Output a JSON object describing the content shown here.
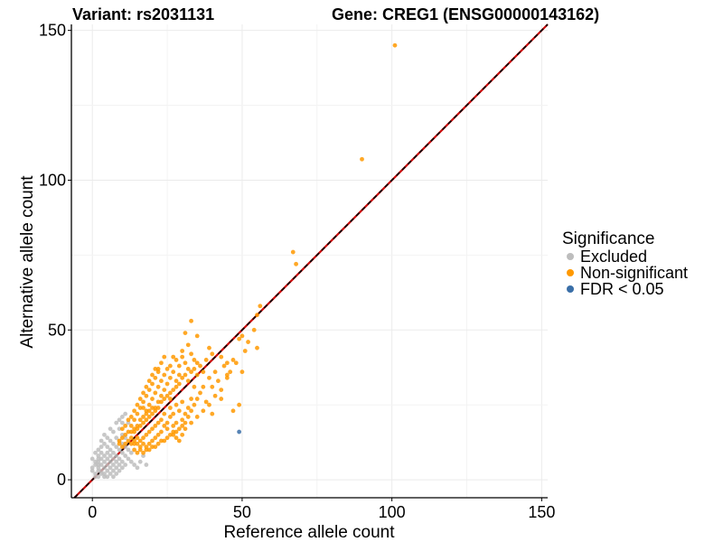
{
  "chart_data": {
    "type": "scatter",
    "title_left": "Variant: rs2031131",
    "title_right": "Gene: CREG1 (ENSG00000143162)",
    "xlabel": "Reference allele count",
    "ylabel": "Alternative allele count",
    "xlim": [
      -7,
      152
    ],
    "ylim": [
      -6,
      152
    ],
    "xticks": [
      0,
      50,
      100,
      150
    ],
    "yticks": [
      0,
      50,
      100,
      150
    ],
    "grid": true,
    "reference_line": {
      "type": "identity",
      "slope": 1,
      "intercept": 0,
      "colors": [
        "#cc0000",
        "#000000"
      ],
      "style": "dashed"
    },
    "legend": {
      "title": "Significance",
      "position": "right",
      "entries": [
        {
          "label": "Excluded",
          "color": "#bdbdbd"
        },
        {
          "label": "Non-significant",
          "color": "#ff9900"
        },
        {
          "label": "FDR < 0.05",
          "color": "#3a6fa8"
        }
      ]
    },
    "series": [
      {
        "name": "Excluded",
        "color": "#bdbdbd",
        "points": [
          [
            0,
            3
          ],
          [
            0,
            4
          ],
          [
            0,
            7
          ],
          [
            1,
            1
          ],
          [
            1,
            2
          ],
          [
            1,
            5
          ],
          [
            1,
            6
          ],
          [
            1,
            9
          ],
          [
            2,
            1
          ],
          [
            2,
            3
          ],
          [
            2,
            4
          ],
          [
            2,
            5
          ],
          [
            2,
            6
          ],
          [
            2,
            7
          ],
          [
            2,
            8
          ],
          [
            2,
            10
          ],
          [
            3,
            2
          ],
          [
            3,
            3
          ],
          [
            3,
            5
          ],
          [
            3,
            7
          ],
          [
            3,
            9
          ],
          [
            3,
            11
          ],
          [
            4,
            1
          ],
          [
            4,
            2
          ],
          [
            4,
            4
          ],
          [
            4,
            6
          ],
          [
            4,
            8
          ],
          [
            4,
            12
          ],
          [
            5,
            1
          ],
          [
            5,
            3
          ],
          [
            5,
            5
          ],
          [
            5,
            7
          ],
          [
            5,
            9
          ],
          [
            5,
            11
          ],
          [
            5,
            14
          ],
          [
            6,
            2
          ],
          [
            6,
            4
          ],
          [
            6,
            6
          ],
          [
            6,
            8
          ],
          [
            6,
            10
          ],
          [
            6,
            13
          ],
          [
            7,
            1
          ],
          [
            7,
            3
          ],
          [
            7,
            5
          ],
          [
            7,
            7
          ],
          [
            7,
            9
          ],
          [
            7,
            12
          ],
          [
            7,
            16
          ],
          [
            8,
            2
          ],
          [
            8,
            4
          ],
          [
            8,
            6
          ],
          [
            8,
            8
          ],
          [
            8,
            11
          ],
          [
            8,
            14
          ],
          [
            8,
            19
          ],
          [
            9,
            3
          ],
          [
            9,
            5
          ],
          [
            9,
            7
          ],
          [
            9,
            10
          ],
          [
            9,
            13
          ],
          [
            9,
            17
          ],
          [
            10,
            4
          ],
          [
            10,
            6
          ],
          [
            10,
            9
          ],
          [
            10,
            12
          ],
          [
            10,
            15
          ],
          [
            10,
            21
          ],
          [
            11,
            5
          ],
          [
            11,
            8
          ],
          [
            11,
            11
          ],
          [
            11,
            14
          ],
          [
            12,
            7
          ],
          [
            12,
            10
          ],
          [
            13,
            6
          ],
          [
            13,
            9
          ],
          [
            14,
            5
          ],
          [
            15,
            4
          ],
          [
            16,
            6
          ],
          [
            17,
            8
          ],
          [
            18,
            5
          ],
          [
            12,
            19
          ],
          [
            11,
            22
          ],
          [
            10,
            19
          ],
          [
            6,
            17
          ],
          [
            4,
            15
          ],
          [
            3,
            13
          ],
          [
            9,
            20
          ]
        ]
      },
      {
        "name": "Non-significant",
        "color": "#ff9900",
        "points": [
          [
            101,
            145
          ],
          [
            90,
            107
          ],
          [
            67,
            76
          ],
          [
            68,
            72
          ],
          [
            56,
            58
          ],
          [
            55,
            55
          ],
          [
            54,
            50
          ],
          [
            52,
            46
          ],
          [
            55,
            44
          ],
          [
            50,
            48
          ],
          [
            49,
            47
          ],
          [
            51,
            43
          ],
          [
            45,
            35
          ],
          [
            48,
            39
          ],
          [
            45,
            39
          ],
          [
            50,
            36
          ],
          [
            49,
            25
          ],
          [
            47,
            23
          ],
          [
            43,
            27
          ],
          [
            42,
            33
          ],
          [
            44,
            38
          ],
          [
            40,
            31
          ],
          [
            40,
            42
          ],
          [
            39,
            44
          ],
          [
            38,
            40
          ],
          [
            37,
            36
          ],
          [
            36,
            38
          ],
          [
            35,
            35
          ],
          [
            35,
            48
          ],
          [
            34,
            40
          ],
          [
            33,
            53
          ],
          [
            33,
            42
          ],
          [
            32,
            45
          ],
          [
            32,
            37
          ],
          [
            31,
            39
          ],
          [
            31,
            49
          ],
          [
            30,
            41
          ],
          [
            30,
            43
          ],
          [
            29,
            38
          ],
          [
            29,
            35
          ],
          [
            28,
            40
          ],
          [
            28,
            33
          ],
          [
            27,
            36
          ],
          [
            27,
            41
          ],
          [
            26,
            34
          ],
          [
            26,
            38
          ],
          [
            25,
            37
          ],
          [
            25,
            32
          ],
          [
            24,
            35
          ],
          [
            24,
            30
          ],
          [
            23,
            33
          ],
          [
            23,
            28
          ],
          [
            22,
            31
          ],
          [
            22,
            37
          ],
          [
            21,
            29
          ],
          [
            21,
            34
          ],
          [
            20,
            27
          ],
          [
            20,
            32
          ],
          [
            19,
            30
          ],
          [
            19,
            25
          ],
          [
            18,
            28
          ],
          [
            18,
            23
          ],
          [
            17,
            26
          ],
          [
            17,
            21
          ],
          [
            16,
            24
          ],
          [
            16,
            20
          ],
          [
            15,
            22
          ],
          [
            15,
            18
          ],
          [
            14,
            20
          ],
          [
            14,
            16
          ],
          [
            13,
            18
          ],
          [
            13,
            14
          ],
          [
            12,
            16
          ],
          [
            12,
            13
          ],
          [
            11,
            15
          ],
          [
            11,
            12
          ],
          [
            10,
            14
          ],
          [
            10,
            11
          ],
          [
            9,
            13
          ],
          [
            9,
            12
          ],
          [
            40,
            22
          ],
          [
            38,
            26
          ],
          [
            36,
            29
          ],
          [
            34,
            31
          ],
          [
            33,
            27
          ],
          [
            32,
            24
          ],
          [
            31,
            22
          ],
          [
            30,
            26
          ],
          [
            30,
            20
          ],
          [
            29,
            23
          ],
          [
            28,
            25
          ],
          [
            28,
            19
          ],
          [
            27,
            22
          ],
          [
            27,
            18
          ],
          [
            26,
            24
          ],
          [
            26,
            21
          ],
          [
            25,
            19
          ],
          [
            25,
            17
          ],
          [
            24,
            22
          ],
          [
            24,
            18
          ],
          [
            23,
            20
          ],
          [
            23,
            16
          ],
          [
            22,
            19
          ],
          [
            22,
            15
          ],
          [
            21,
            18
          ],
          [
            21,
            14
          ],
          [
            20,
            17
          ],
          [
            20,
            13
          ],
          [
            19,
            16
          ],
          [
            19,
            12
          ],
          [
            18,
            15
          ],
          [
            18,
            11
          ],
          [
            17,
            14
          ],
          [
            17,
            12
          ],
          [
            16,
            13
          ],
          [
            16,
            11
          ],
          [
            15,
            14
          ],
          [
            15,
            12
          ],
          [
            14,
            12
          ],
          [
            14,
            13
          ],
          [
            13,
            12
          ],
          [
            29,
            13
          ],
          [
            30,
            15
          ],
          [
            28,
            14
          ],
          [
            27,
            15
          ],
          [
            31,
            17
          ],
          [
            33,
            19
          ],
          [
            35,
            21
          ],
          [
            37,
            23
          ],
          [
            39,
            25
          ],
          [
            41,
            28
          ],
          [
            43,
            30
          ],
          [
            45,
            34
          ],
          [
            46,
            36
          ],
          [
            47,
            40
          ],
          [
            43,
            41
          ],
          [
            41,
            36
          ],
          [
            39,
            34
          ],
          [
            37,
            31
          ],
          [
            35,
            27
          ],
          [
            34,
            25
          ],
          [
            33,
            23
          ],
          [
            32,
            21
          ],
          [
            31,
            19
          ],
          [
            30,
            18
          ],
          [
            29,
            17
          ],
          [
            28,
            16
          ],
          [
            27,
            16
          ],
          [
            26,
            15
          ],
          [
            25,
            14
          ],
          [
            24,
            13
          ],
          [
            23,
            13
          ],
          [
            22,
            12
          ],
          [
            21,
            11
          ],
          [
            20,
            11
          ],
          [
            19,
            10
          ],
          [
            18,
            10
          ],
          [
            17,
            9
          ],
          [
            16,
            10
          ],
          [
            15,
            9
          ],
          [
            14,
            10
          ],
          [
            24,
            41
          ],
          [
            23,
            39
          ],
          [
            22,
            36
          ],
          [
            21,
            37
          ],
          [
            20,
            35
          ],
          [
            19,
            33
          ],
          [
            18,
            31
          ],
          [
            17,
            29
          ],
          [
            16,
            27
          ],
          [
            15,
            25
          ],
          [
            14,
            23
          ],
          [
            13,
            21
          ],
          [
            12,
            20
          ],
          [
            11,
            18
          ],
          [
            10,
            17
          ],
          [
            22,
            26
          ],
          [
            21,
            24
          ],
          [
            20,
            22
          ],
          [
            19,
            21
          ],
          [
            18,
            20
          ],
          [
            17,
            19
          ],
          [
            16,
            18
          ],
          [
            15,
            17
          ],
          [
            14,
            17
          ],
          [
            13,
            16
          ],
          [
            26,
            29
          ],
          [
            27,
            30
          ],
          [
            28,
            31
          ],
          [
            29,
            32
          ],
          [
            30,
            34
          ],
          [
            31,
            35
          ],
          [
            32,
            33
          ],
          [
            33,
            36
          ],
          [
            34,
            37
          ],
          [
            35,
            39
          ],
          [
            26,
            27
          ],
          [
            25,
            28
          ],
          [
            24,
            27
          ],
          [
            23,
            26
          ],
          [
            22,
            24
          ],
          [
            21,
            23
          ],
          [
            20,
            24
          ],
          [
            19,
            23
          ],
          [
            18,
            22
          ],
          [
            17,
            24
          ]
        ]
      },
      {
        "name": "FDR < 0.05",
        "color": "#3a6fa8",
        "points": [
          [
            49,
            16
          ]
        ]
      }
    ]
  }
}
